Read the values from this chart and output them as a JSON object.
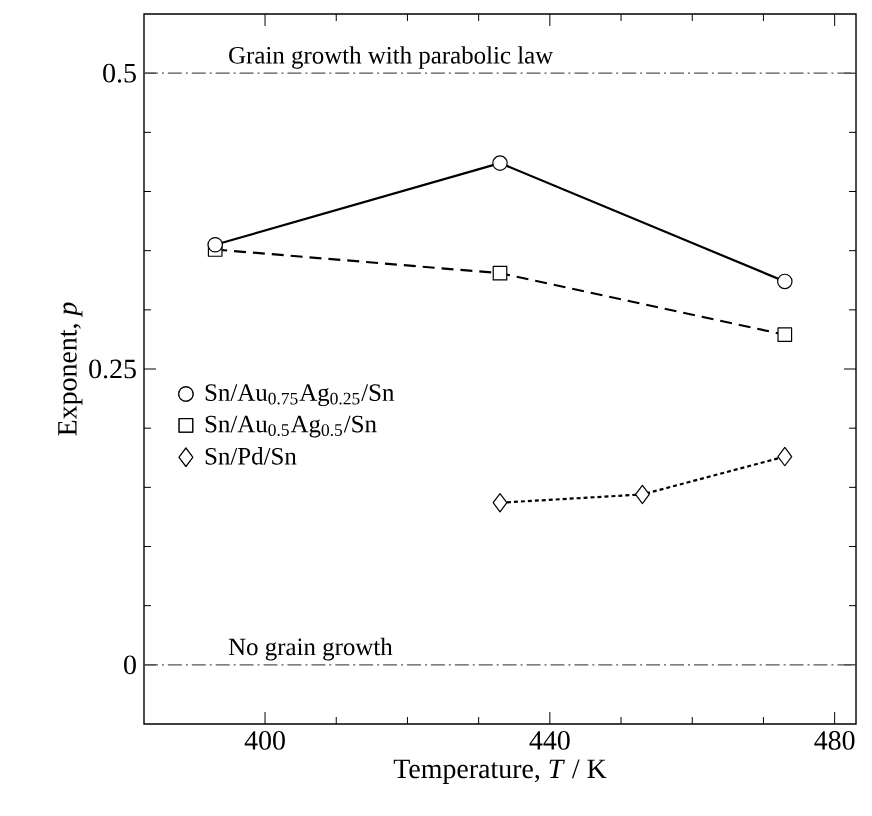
{
  "chart_data": {
    "type": "line",
    "xlabel": "Temperature, *T* / K",
    "ylabel": "Exponent, *p*",
    "series": [
      {
        "name": "Sn/Au$_{0.75}$Ag$_{0.25}$/Sn",
        "color": "#000000",
        "x": [
          393,
          433,
          473
        ],
        "values": [
          0.355,
          0.424,
          0.324
        ],
        "marker": "circle",
        "line_style": "solid"
      },
      {
        "name": "Sn/Au$_{0.5}$Ag$_{0.5}$/Sn",
        "color": "#000000",
        "x": [
          393,
          433,
          473
        ],
        "values": [
          0.351,
          0.331,
          0.279
        ],
        "marker": "square",
        "line_style": "dashed"
      },
      {
        "name": "Sn/Pd/Sn",
        "color": "#000000",
        "x": [
          433,
          453,
          473
        ],
        "values": [
          0.137,
          0.144,
          0.176
        ],
        "marker": "diamond",
        "line_style": "dotted"
      }
    ],
    "xlim": [
      383,
      483
    ],
    "ylim": [
      -0.05,
      0.55
    ],
    "xticks": [
      400,
      440,
      480
    ],
    "yticks": [
      0,
      0.25,
      0.5
    ],
    "ref_lines": [
      {
        "axis": "y",
        "value": 0.5,
        "label": "Grain growth with parabolic law",
        "color": "#555555",
        "line_style": "dashdot"
      },
      {
        "axis": "y",
        "value": 0,
        "label": "No grain growth",
        "color": "#555555",
        "line_style": "dashdot"
      }
    ],
    "legend": "left",
    "grid": false
  }
}
